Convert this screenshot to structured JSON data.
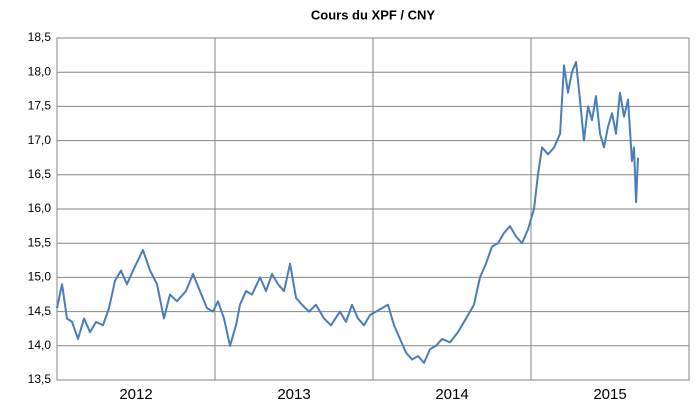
{
  "chart_data": {
    "type": "line",
    "title": "Cours du XPF / CNY",
    "x": [
      2012.0,
      2012.032,
      2012.063,
      2012.095,
      2012.133,
      2012.171,
      2012.209,
      2012.247,
      2012.291,
      2012.329,
      2012.367,
      2012.405,
      2012.443,
      2012.481,
      2012.544,
      2012.589,
      2012.633,
      2012.677,
      2012.715,
      2012.759,
      2012.816,
      2012.861,
      2012.905,
      2012.949,
      2012.987,
      2013.019,
      2013.057,
      2013.095,
      2013.133,
      2013.158,
      2013.196,
      2013.234,
      2013.285,
      2013.323,
      2013.361,
      2013.399,
      2013.437,
      2013.475,
      2013.513,
      2013.551,
      2013.595,
      2013.639,
      2013.69,
      2013.734,
      2013.791,
      2013.829,
      2013.867,
      2013.905,
      2013.943,
      2013.981,
      2014.019,
      2014.057,
      2014.095,
      2014.133,
      2014.171,
      2014.209,
      2014.247,
      2014.285,
      2014.323,
      2014.361,
      2014.399,
      2014.437,
      2014.487,
      2014.538,
      2014.589,
      2014.639,
      2014.677,
      2014.715,
      2014.753,
      2014.791,
      2014.829,
      2014.867,
      2014.905,
      2014.943,
      2014.981,
      2015.019,
      2015.044,
      2015.07,
      2015.108,
      2015.146,
      2015.184,
      2015.209,
      2015.234,
      2015.259,
      2015.285,
      2015.31,
      2015.335,
      2015.361,
      2015.386,
      2015.411,
      2015.437,
      2015.462,
      2015.487,
      2015.513,
      2015.538,
      2015.563,
      2015.589,
      2015.614,
      2015.639,
      2015.652,
      2015.665,
      2015.677
    ],
    "series": [
      {
        "color": "#4a7ebb",
        "values": [
          14.55,
          14.9,
          14.4,
          14.35,
          14.1,
          14.4,
          14.2,
          14.35,
          14.3,
          14.55,
          14.95,
          15.1,
          14.9,
          15.1,
          15.4,
          15.1,
          14.9,
          14.4,
          14.75,
          14.65,
          14.8,
          15.05,
          14.8,
          14.55,
          14.5,
          14.65,
          14.4,
          14.0,
          14.3,
          14.6,
          14.8,
          14.75,
          15.0,
          14.8,
          15.05,
          14.9,
          14.8,
          15.2,
          14.7,
          14.6,
          14.5,
          14.6,
          14.4,
          14.3,
          14.5,
          14.35,
          14.6,
          14.4,
          14.3,
          14.45,
          14.5,
          14.55,
          14.6,
          14.3,
          14.1,
          13.9,
          13.8,
          13.85,
          13.75,
          13.95,
          14.0,
          14.1,
          14.05,
          14.2,
          14.4,
          14.6,
          15.0,
          15.2,
          15.45,
          15.5,
          15.65,
          15.75,
          15.6,
          15.5,
          15.7,
          16.0,
          16.5,
          16.9,
          16.8,
          16.9,
          17.1,
          18.1,
          17.7,
          18.0,
          18.15,
          17.6,
          17.0,
          17.5,
          17.3,
          17.65,
          17.1,
          16.9,
          17.2,
          17.4,
          17.1,
          17.7,
          17.35,
          17.6,
          16.7,
          16.9,
          16.1,
          16.75
        ]
      }
    ],
    "xlim": [
      2012,
      2016
    ],
    "xticks": [
      {
        "value": 2012.5,
        "label": "2012"
      },
      {
        "value": 2013.5,
        "label": "2013"
      },
      {
        "value": 2014.5,
        "label": "2014"
      },
      {
        "value": 2015.5,
        "label": "2015"
      }
    ],
    "xgrid": [
      2013,
      2014,
      2015
    ],
    "ylim": [
      13.5,
      18.5
    ],
    "yticks": [
      {
        "value": 13.5,
        "label": "13,5"
      },
      {
        "value": 14.0,
        "label": "14,0"
      },
      {
        "value": 14.5,
        "label": "14,5"
      },
      {
        "value": 15.0,
        "label": "15,0"
      },
      {
        "value": 15.5,
        "label": "15,5"
      },
      {
        "value": 16.0,
        "label": "16,0"
      },
      {
        "value": 16.5,
        "label": "16,5"
      },
      {
        "value": 17.0,
        "label": "17,0"
      },
      {
        "value": 17.5,
        "label": "17,5"
      },
      {
        "value": 18.0,
        "label": "18,0"
      },
      {
        "value": 18.5,
        "label": "18,5"
      }
    ],
    "grid": true
  }
}
